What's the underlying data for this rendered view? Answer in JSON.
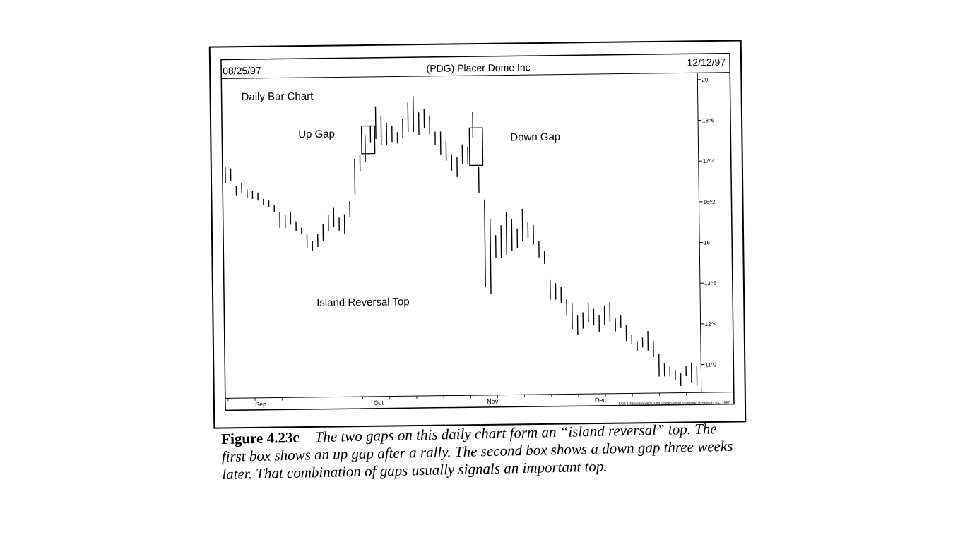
{
  "chart_data": {
    "type": "bar",
    "subtype": "ohlc-daily",
    "title": "(PDG) Placer Dome Inc",
    "start_date": "08/25/97",
    "end_date": "12/12/97",
    "chart_label": "Daily Bar Chart",
    "yaxis_ticks": [
      "20",
      "18^6",
      "17^4",
      "16^2",
      "15",
      "13^6",
      "12^4",
      "11^2"
    ],
    "xaxis_ticks": [
      "Sep",
      "Oct",
      "Nov",
      "Dec"
    ],
    "ylim": [
      10.5,
      20.1
    ],
    "grid": false,
    "bars": [
      {
        "high": 17.5,
        "low": 17.0
      },
      {
        "high": 17.45,
        "low": 17.05
      },
      {
        "high": 16.9,
        "low": 16.6
      },
      {
        "high": 17.0,
        "low": 16.7
      },
      {
        "high": 16.8,
        "low": 16.55
      },
      {
        "high": 16.75,
        "low": 16.5
      },
      {
        "high": 16.7,
        "low": 16.45
      },
      {
        "high": 16.5,
        "low": 16.3
      },
      {
        "high": 16.45,
        "low": 16.25
      },
      {
        "high": 16.3,
        "low": 16.1
      },
      {
        "high": 16.1,
        "low": 15.6
      },
      {
        "high": 16.0,
        "low": 15.6
      },
      {
        "high": 16.1,
        "low": 15.7
      },
      {
        "high": 15.8,
        "low": 15.5
      },
      {
        "high": 15.6,
        "low": 15.4
      },
      {
        "high": 15.4,
        "low": 15.0
      },
      {
        "high": 15.2,
        "low": 14.9
      },
      {
        "high": 15.4,
        "low": 15.0
      },
      {
        "high": 15.7,
        "low": 15.2
      },
      {
        "high": 16.0,
        "low": 15.5
      },
      {
        "high": 16.2,
        "low": 15.6
      },
      {
        "high": 15.9,
        "low": 15.5
      },
      {
        "high": 16.0,
        "low": 15.4
      },
      {
        "high": 16.4,
        "low": 15.9
      },
      {
        "high": 17.7,
        "low": 16.6
      },
      {
        "high": 17.8,
        "low": 17.3
      },
      {
        "high": 18.4,
        "low": 17.6
      },
      {
        "high": 18.7,
        "low": 18.2
      },
      {
        "high": 19.3,
        "low": 18.3
      },
      {
        "high": 19.0,
        "low": 18.1
      },
      {
        "high": 18.8,
        "low": 18.1
      },
      {
        "high": 18.7,
        "low": 18.2
      },
      {
        "high": 18.5,
        "low": 18.15
      },
      {
        "high": 18.9,
        "low": 18.3
      },
      {
        "high": 19.4,
        "low": 18.5
      },
      {
        "high": 19.6,
        "low": 18.5
      },
      {
        "high": 19.1,
        "low": 18.4
      },
      {
        "high": 19.2,
        "low": 18.6
      },
      {
        "high": 19.0,
        "low": 18.4
      },
      {
        "high": 18.5,
        "low": 18.1
      },
      {
        "high": 18.5,
        "low": 17.8
      },
      {
        "high": 18.2,
        "low": 17.6
      },
      {
        "high": 17.8,
        "low": 17.3
      },
      {
        "high": 17.7,
        "low": 17.1
      },
      {
        "high": 18.1,
        "low": 17.5
      },
      {
        "high": 18.0,
        "low": 17.5
      },
      {
        "high": 19.1,
        "low": 18.3
      },
      {
        "high": 17.4,
        "low": 16.6
      },
      {
        "high": 16.4,
        "low": 13.7
      },
      {
        "high": 15.8,
        "low": 13.5
      },
      {
        "high": 15.3,
        "low": 14.6
      },
      {
        "high": 15.6,
        "low": 14.6
      },
      {
        "high": 16.0,
        "low": 14.7
      },
      {
        "high": 15.8,
        "low": 14.8
      },
      {
        "high": 15.5,
        "low": 14.9
      },
      {
        "high": 16.1,
        "low": 15.1
      },
      {
        "high": 15.7,
        "low": 15.2
      },
      {
        "high": 15.6,
        "low": 15.0
      },
      {
        "high": 15.1,
        "low": 14.6
      },
      {
        "high": 14.8,
        "low": 14.4
      },
      {
        "high": 13.9,
        "low": 13.3
      },
      {
        "high": 13.8,
        "low": 13.3
      },
      {
        "high": 13.7,
        "low": 13.2
      },
      {
        "high": 13.3,
        "low": 12.8
      },
      {
        "high": 13.2,
        "low": 12.4
      },
      {
        "high": 12.8,
        "low": 12.2
      },
      {
        "high": 12.9,
        "low": 12.4
      },
      {
        "high": 13.2,
        "low": 12.6
      },
      {
        "high": 13.0,
        "low": 12.5
      },
      {
        "high": 12.8,
        "low": 12.3
      },
      {
        "high": 13.1,
        "low": 12.5
      },
      {
        "high": 13.2,
        "low": 12.6
      },
      {
        "high": 12.7,
        "low": 12.3
      },
      {
        "high": 12.8,
        "low": 12.4
      },
      {
        "high": 12.5,
        "low": 12.0
      },
      {
        "high": 12.2,
        "low": 11.9
      },
      {
        "high": 12.0,
        "low": 11.7
      },
      {
        "high": 12.1,
        "low": 11.8
      },
      {
        "high": 12.3,
        "low": 11.7
      },
      {
        "high": 12.0,
        "low": 11.5
      },
      {
        "high": 11.6,
        "low": 10.9
      },
      {
        "high": 11.3,
        "low": 10.9
      },
      {
        "high": 11.2,
        "low": 10.9
      },
      {
        "high": 11.1,
        "low": 10.8
      },
      {
        "high": 11.0,
        "low": 10.6
      },
      {
        "high": 11.2,
        "low": 10.9
      },
      {
        "high": 11.3,
        "low": 10.7
      },
      {
        "high": 11.2,
        "low": 10.6
      }
    ],
    "gap_boxes": [
      {
        "name": "up-gap-box",
        "from_bar": 26,
        "to_bar": 27,
        "top": 18.7,
        "bottom": 17.85
      },
      {
        "name": "down-gap-box",
        "from_bar": 46,
        "to_bar": 47,
        "top": 18.6,
        "bottom": 17.45
      }
    ],
    "annotations": {
      "up_gap": "Up Gap",
      "down_gap": "Down Gap",
      "island": "Island Reversal Top"
    },
    "footer_note": "5/02 1:43pm Printed using TradeStation © Omega Research, Inc. 1997"
  },
  "caption": {
    "figure": "Figure 4.23c",
    "text": "The two gaps on this daily chart form an “island reversal” top. The first box shows an up gap after a rally. The second box shows a down gap three weeks later. That combination of gaps usually signals an important top."
  },
  "colors": {
    "ink": "#000000",
    "paper": "#ffffff"
  }
}
